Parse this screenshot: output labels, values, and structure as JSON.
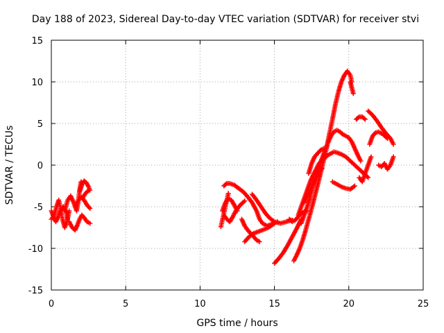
{
  "chart_data": {
    "type": "scatter",
    "title": "Day 188 of 2023, Sidereal Day-to-day VTEC variation (SDTVAR) for receiver stvi",
    "xlabel": "GPS time / hours",
    "ylabel": "SDTVAR / TECUs",
    "xlim": [
      0,
      25
    ],
    "ylim": [
      -15,
      15
    ],
    "xticks": [
      0,
      5,
      10,
      15,
      20,
      25
    ],
    "yticks": [
      -15,
      -10,
      -5,
      0,
      5,
      10,
      15
    ],
    "xtick_labels": [
      "0",
      "5",
      "10",
      "15",
      "20",
      "25"
    ],
    "ytick_labels": [
      "-15",
      "-10",
      "-5",
      "0",
      "5",
      "10",
      "15"
    ],
    "grid": true,
    "marker": "plus",
    "color": "#ff0000",
    "series": [
      {
        "x": [
          0.0,
          0.2,
          0.35,
          0.5,
          0.6,
          0.75,
          0.9,
          1.05,
          1.2
        ],
        "y": [
          -6.5,
          -6.0,
          -5.0,
          -4.2,
          -5.0,
          -6.5,
          -7.5,
          -6.8,
          -5.5
        ]
      },
      {
        "x": [
          0.0,
          0.15,
          0.3,
          0.45,
          0.6,
          0.8,
          1.0,
          1.1
        ],
        "y": [
          -5.5,
          -6.2,
          -6.8,
          -6.3,
          -5.5,
          -5.0,
          -5.6,
          -6.5
        ]
      },
      {
        "x": [
          0.9,
          1.1,
          1.3,
          1.5,
          1.7,
          1.8,
          1.9,
          2.0
        ],
        "y": [
          -5.5,
          -4.2,
          -3.7,
          -4.5,
          -5.5,
          -4.5,
          -3.0,
          -2.0
        ]
      },
      {
        "x": [
          1.2,
          1.4,
          1.6,
          1.75,
          1.9,
          2.05,
          2.2,
          2.4,
          2.6
        ],
        "y": [
          -6.8,
          -7.5,
          -7.8,
          -7.2,
          -6.5,
          -6.0,
          -6.3,
          -6.8,
          -7.0
        ]
      },
      {
        "x": [
          1.6,
          1.8,
          2.0,
          2.2,
          2.4,
          2.6
        ],
        "y": [
          -5.0,
          -4.3,
          -3.8,
          -4.2,
          -4.8,
          -5.2
        ]
      },
      {
        "x": [
          1.9,
          2.05,
          2.2,
          2.35,
          2.5,
          2.6
        ],
        "y": [
          -3.2,
          -2.4,
          -1.9,
          -2.1,
          -2.6,
          -3.0
        ]
      },
      {
        "x": [
          2.1,
          2.25,
          2.4,
          2.55
        ],
        "y": [
          -4.0,
          -3.5,
          -3.2,
          -3.0
        ]
      },
      {
        "x": [
          11.4,
          11.5,
          11.6,
          11.7,
          11.8,
          11.9
        ],
        "y": [
          -7.4,
          -6.6,
          -5.8,
          -5.0,
          -4.2,
          -3.4
        ]
      },
      {
        "x": [
          11.5,
          11.7,
          11.9,
          12.1,
          12.3,
          12.5
        ],
        "y": [
          -5.5,
          -4.5,
          -4.0,
          -4.2,
          -4.8,
          -5.5
        ]
      },
      {
        "x": [
          11.6,
          11.8,
          12.0,
          12.2,
          12.4,
          12.7,
          13.0
        ],
        "y": [
          -6.0,
          -6.5,
          -6.8,
          -6.2,
          -5.5,
          -4.8,
          -4.3
        ]
      },
      {
        "x": [
          11.6,
          11.8,
          12.0,
          12.3,
          12.6,
          12.9,
          13.2,
          13.5,
          13.8,
          14.0,
          14.2,
          14.5,
          14.8,
          15.2
        ],
        "y": [
          -2.5,
          -2.2,
          -2.2,
          -2.4,
          -2.8,
          -3.2,
          -3.8,
          -4.5,
          -5.5,
          -6.5,
          -7.0,
          -7.3,
          -7.1,
          -6.8
        ]
      },
      {
        "x": [
          12.8,
          13.0,
          13.2,
          13.4,
          13.6,
          13.8,
          14.0
        ],
        "y": [
          -6.5,
          -7.3,
          -7.8,
          -8.2,
          -8.6,
          -9.0,
          -9.2
        ]
      },
      {
        "x": [
          13.0,
          13.3,
          13.6,
          13.9,
          14.2,
          14.6,
          15.0
        ],
        "y": [
          -9.2,
          -8.6,
          -8.2,
          -8.0,
          -7.8,
          -7.5,
          -7.0
        ]
      },
      {
        "x": [
          13.5,
          13.8,
          14.1,
          14.4,
          14.7,
          15.0,
          15.4,
          15.8,
          16.2
        ],
        "y": [
          -3.5,
          -4.2,
          -5.0,
          -5.8,
          -6.4,
          -6.8,
          -7.0,
          -6.8,
          -6.6
        ]
      },
      {
        "x": [
          15.0,
          15.3,
          15.6,
          15.9,
          16.2,
          16.5,
          16.8
        ],
        "y": [
          -11.8,
          -11.2,
          -10.5,
          -9.6,
          -8.6,
          -7.6,
          -6.5
        ]
      },
      {
        "x": [
          16.0,
          16.2,
          16.4,
          16.6,
          16.8,
          17.0,
          17.2
        ],
        "y": [
          -6.5,
          -6.8,
          -6.6,
          -6.2,
          -5.8,
          -5.6,
          -5.5
        ]
      },
      {
        "x": [
          16.3,
          16.5,
          16.7,
          16.9,
          17.1,
          17.3,
          17.5,
          17.7,
          17.9,
          18.1,
          18.3,
          18.5,
          18.7,
          18.9,
          19.1,
          19.3,
          19.5,
          19.7,
          19.9,
          20.1,
          20.2
        ],
        "y": [
          -11.5,
          -10.8,
          -10.0,
          -9.0,
          -7.8,
          -6.5,
          -5.2,
          -3.8,
          -2.4,
          -1.0,
          0.5,
          2.0,
          3.8,
          5.5,
          7.3,
          8.8,
          10.0,
          10.8,
          11.3,
          10.8,
          10.0
        ]
      },
      {
        "x": [
          16.6,
          16.8,
          17.0,
          17.2,
          17.4,
          17.6,
          17.8,
          18.0,
          18.2,
          18.4,
          18.6,
          18.8,
          19.0,
          19.2,
          19.5,
          19.8,
          20.1,
          20.4,
          20.7,
          21.0,
          21.3
        ],
        "y": [
          -6.0,
          -5.0,
          -4.0,
          -3.0,
          -2.0,
          -1.2,
          -0.5,
          0.2,
          0.6,
          0.9,
          1.2,
          1.4,
          1.6,
          1.5,
          1.3,
          1.0,
          0.5,
          0.0,
          -0.5,
          -1.0,
          -1.5
        ]
      },
      {
        "x": [
          16.8,
          17.0,
          17.2,
          17.4,
          17.6,
          17.8,
          18.0,
          18.2,
          18.4,
          18.6,
          18.8,
          19.0,
          19.2,
          19.4,
          19.6,
          19.8,
          20.0,
          20.2,
          20.4,
          20.6,
          20.8
        ],
        "y": [
          -7.0,
          -6.0,
          -5.0,
          -3.8,
          -2.5,
          -1.2,
          0.0,
          0.8,
          1.8,
          2.7,
          3.5,
          4.0,
          4.2,
          4.0,
          3.7,
          3.5,
          3.3,
          2.8,
          2.0,
          1.2,
          0.5
        ]
      },
      {
        "x": [
          17.0,
          17.2,
          17.4,
          17.6,
          17.8,
          18.0,
          18.2
        ],
        "y": [
          -4.5,
          -3.8,
          -3.0,
          -2.2,
          -1.5,
          -0.9,
          -0.4
        ]
      },
      {
        "x": [
          17.3,
          17.5,
          17.7,
          17.9,
          18.1,
          18.3
        ],
        "y": [
          -1.0,
          0.2,
          1.0,
          1.4,
          1.8,
          2.0
        ]
      },
      {
        "x": [
          18.9,
          19.2,
          19.5,
          19.8,
          20.1,
          20.4
        ],
        "y": [
          -2.0,
          -2.3,
          -2.6,
          -2.8,
          -2.9,
          -2.5
        ]
      },
      {
        "x": [
          20.1,
          20.2,
          20.3
        ],
        "y": [
          10.0,
          9.3,
          8.6
        ]
      },
      {
        "x": [
          20.5,
          20.7,
          20.9,
          21.1
        ],
        "y": [
          5.5,
          5.8,
          5.8,
          5.5
        ]
      },
      {
        "x": [
          20.7,
          20.9,
          21.1,
          21.3,
          21.5
        ],
        "y": [
          -1.5,
          -2.0,
          -1.0,
          0.0,
          1.0
        ]
      },
      {
        "x": [
          21.3,
          21.6,
          21.9,
          22.2,
          22.5,
          22.8,
          23.0
        ],
        "y": [
          6.5,
          6.0,
          5.3,
          4.5,
          3.8,
          3.2,
          2.5
        ]
      },
      {
        "x": [
          21.4,
          21.6,
          21.8,
          22.0,
          22.3,
          22.6
        ],
        "y": [
          2.5,
          3.5,
          3.9,
          4.0,
          3.7,
          3.2
        ]
      },
      {
        "x": [
          22.0,
          22.2,
          22.4,
          22.6,
          22.8,
          23.0
        ],
        "y": [
          0.0,
          -0.2,
          0.2,
          -0.5,
          0.0,
          1.0
        ]
      }
    ]
  }
}
